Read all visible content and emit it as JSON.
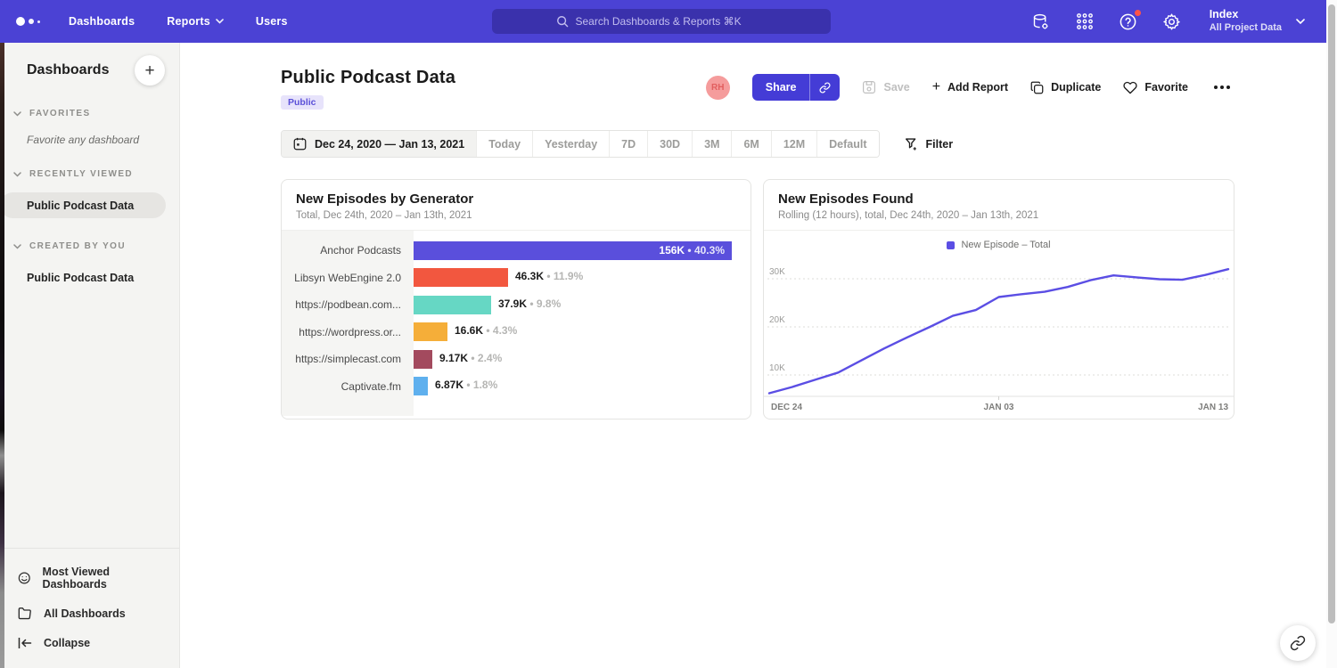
{
  "topbar": {
    "nav": [
      {
        "label": "Dashboards"
      },
      {
        "label": "Reports"
      },
      {
        "label": "Users"
      }
    ],
    "search_placeholder": "Search Dashboards & Reports ⌘K",
    "icons": [
      "data-connections-icon",
      "apps-grid-icon",
      "help-icon",
      "settings-icon"
    ],
    "workspace": {
      "name": "Index",
      "scope": "All Project Data"
    }
  },
  "sidebar": {
    "title": "Dashboards",
    "add_button": "+",
    "sections": [
      {
        "label": "FAVORITES",
        "hint": "Favorite any dashboard"
      },
      {
        "label": "RECENTLY VIEWED",
        "items": [
          {
            "label": "Public Podcast Data",
            "active": true
          }
        ]
      },
      {
        "label": "CREATED BY YOU",
        "items": [
          {
            "label": "Public Podcast Data",
            "active": false
          }
        ]
      }
    ],
    "footer": [
      {
        "label": "Most Viewed Dashboards",
        "icon": "smiley-icon"
      },
      {
        "label": "All Dashboards",
        "icon": "folder-icon"
      },
      {
        "label": "Collapse",
        "icon": "collapse-icon"
      }
    ]
  },
  "page": {
    "title": "Public Podcast Data",
    "badge": "Public",
    "avatar_initials": "RH",
    "actions": {
      "share": "Share",
      "save": "Save",
      "add_report": "Add Report",
      "duplicate": "Duplicate",
      "favorite": "Favorite"
    }
  },
  "date_controls": {
    "range": "Dec 24, 2020 — Jan 13, 2021",
    "presets": [
      "Today",
      "Yesterday",
      "7D",
      "30D",
      "3M",
      "6M",
      "12M",
      "Default"
    ],
    "filter": "Filter"
  },
  "chart_data": [
    {
      "type": "bar",
      "orientation": "horizontal",
      "title": "New Episodes by Generator",
      "subtitle": "Total, Dec 24th, 2020 – Jan 13th, 2021",
      "categories": [
        "Anchor Podcasts",
        "Libsyn WebEngine 2.0",
        "https://podbean.com...",
        "https://wordpress.or...",
        "https://simplecast.com",
        "Captivate.fm"
      ],
      "values": [
        156000,
        46300,
        37900,
        16600,
        9170,
        6870
      ],
      "value_labels": [
        "156K",
        "46.3K",
        "37.9K",
        "16.6K",
        "9.17K",
        "6.87K"
      ],
      "pct_labels": [
        "40.3%",
        "11.9%",
        "9.8%",
        "4.3%",
        "2.4%",
        "1.8%"
      ],
      "colors": [
        "#5A4FDC",
        "#F2573F",
        "#66D7C4",
        "#F5AE39",
        "#A34A5E",
        "#5FB0EE"
      ],
      "label_inside": [
        true,
        false,
        false,
        false,
        false,
        false
      ],
      "xlim": [
        0,
        156000
      ]
    },
    {
      "type": "line",
      "title": "New Episodes Found",
      "subtitle": "Rolling (12 hours), total, Dec 24th, 2020 – Jan 13th, 2021",
      "legend": [
        {
          "label": "New Episode – Total",
          "color": "#5B4EE4"
        }
      ],
      "legend_position": "top-center",
      "line_color": "#5B4EE4",
      "grid": "horizontal-dotted",
      "x": [
        "Dec 24",
        "Dec 25",
        "Dec 26",
        "Dec 27",
        "Dec 28",
        "Dec 29",
        "Dec 30",
        "Dec 31",
        "Jan 1",
        "Jan 2",
        "Jan 3",
        "Jan 4",
        "Jan 5",
        "Jan 6",
        "Jan 7",
        "Jan 8",
        "Jan 9",
        "Jan 10",
        "Jan 11",
        "Jan 12",
        "Jan 13"
      ],
      "values": [
        6200,
        7500,
        9000,
        10500,
        13000,
        15500,
        17800,
        20000,
        22300,
        23500,
        26200,
        26800,
        27300,
        28300,
        29700,
        30700,
        30300,
        29900,
        29800,
        30800,
        32000
      ],
      "y_ticks": [
        {
          "label": "10K",
          "value": 10000
        },
        {
          "label": "20K",
          "value": 20000
        },
        {
          "label": "30K",
          "value": 30000
        }
      ],
      "x_ticks": [
        {
          "label": "DEC 24",
          "index": 0
        },
        {
          "label": "JAN 03",
          "index": 10
        },
        {
          "label": "JAN 13",
          "index": 20
        }
      ],
      "ylim": [
        4500,
        33500
      ]
    }
  ],
  "fab": {
    "icon": "link-icon"
  }
}
